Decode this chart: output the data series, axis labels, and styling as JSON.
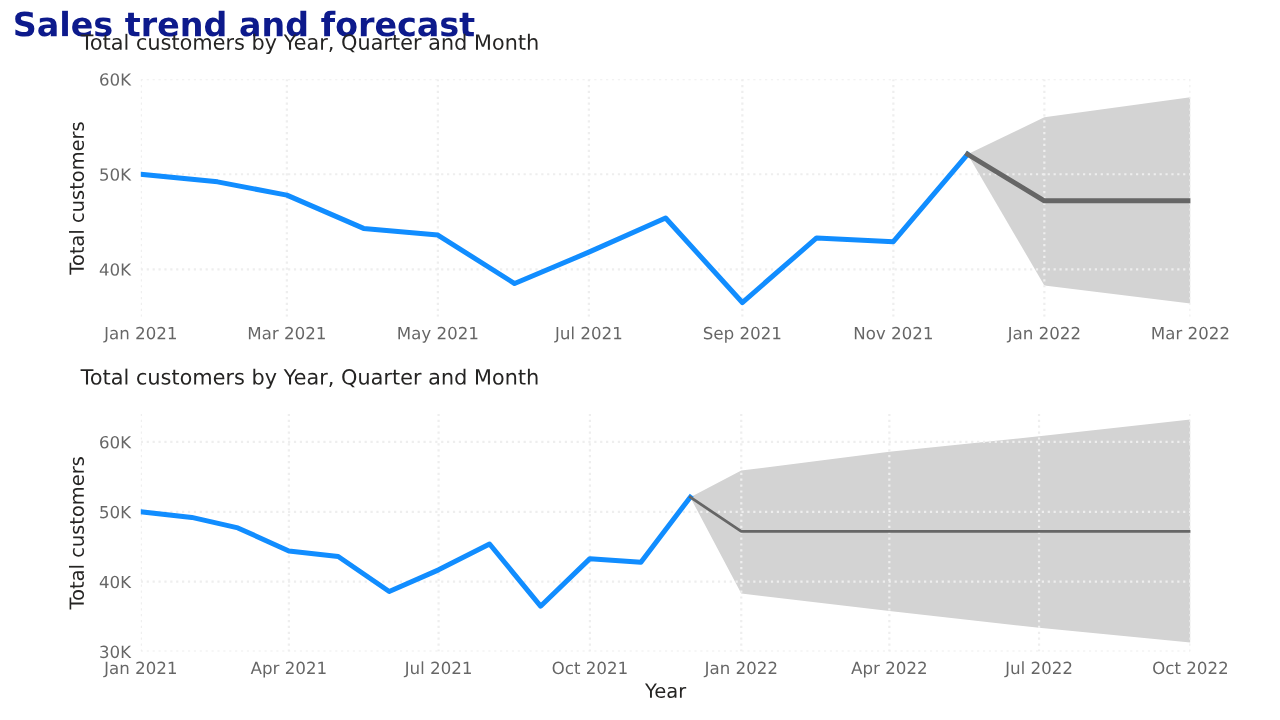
{
  "chart_data": [
    {
      "type": "line",
      "title": "Sales trend and forecast",
      "subtitle": "Total customers by Year, Quarter and Month",
      "ylabel": "Total customers",
      "grid": true,
      "legend": false,
      "marker": "none",
      "line_style": "solid",
      "xlim": [
        "2021-01",
        "2022-03"
      ],
      "ylim": [
        35000,
        60000
      ],
      "xticks": [
        {
          "value": "2021-01",
          "label": "Jan 2021"
        },
        {
          "value": "2021-03",
          "label": "Mar 2021"
        },
        {
          "value": "2021-05",
          "label": "May 2021"
        },
        {
          "value": "2021-07",
          "label": "Jul 2021"
        },
        {
          "value": "2021-09",
          "label": "Sep 2021"
        },
        {
          "value": "2021-11",
          "label": "Nov 2021"
        },
        {
          "value": "2022-01",
          "label": "Jan 2022"
        },
        {
          "value": "2022-03",
          "label": "Mar 2022"
        }
      ],
      "yticks": [
        {
          "value": 40000,
          "label": "40K"
        },
        {
          "value": 50000,
          "label": "50K"
        },
        {
          "value": 60000,
          "label": "60K"
        }
      ],
      "series": [
        {
          "color": "#118dff",
          "x": [
            "2021-01",
            "2021-02",
            "2021-03",
            "2021-04",
            "2021-05",
            "2021-06",
            "2021-07",
            "2021-08",
            "2021-09",
            "2021-10",
            "2021-11",
            "2021-12"
          ],
          "values": [
            50000,
            49200,
            47800,
            44300,
            43600,
            38500,
            41800,
            45400,
            36500,
            43300,
            42900,
            52100
          ]
        },
        {
          "color": "#666666",
          "x": [
            "2021-12",
            "2022-01",
            "2022-03"
          ],
          "values": [
            52100,
            47200,
            47200
          ],
          "lower": [
            52100,
            38300,
            36400
          ],
          "upper": [
            52100,
            56000,
            58100
          ]
        }
      ]
    },
    {
      "type": "line",
      "title": "Total customers by Year, Quarter and Month",
      "xlabel": "Year",
      "ylabel": "Total customers",
      "grid": true,
      "legend": false,
      "marker": "none",
      "line_style": "solid",
      "xlim": [
        "2021-01",
        "2022-10"
      ],
      "ylim": [
        30000,
        64000
      ],
      "xticks": [
        {
          "value": "2021-01",
          "label": "Jan 2021"
        },
        {
          "value": "2021-04",
          "label": "Apr 2021"
        },
        {
          "value": "2021-07",
          "label": "Jul 2021"
        },
        {
          "value": "2021-10",
          "label": "Oct 2021"
        },
        {
          "value": "2022-01",
          "label": "Jan 2022"
        },
        {
          "value": "2022-04",
          "label": "Apr 2022"
        },
        {
          "value": "2022-07",
          "label": "Jul 2022"
        },
        {
          "value": "2022-10",
          "label": "Oct 2022"
        }
      ],
      "yticks": [
        {
          "value": 30000,
          "label": "30K"
        },
        {
          "value": 40000,
          "label": "40K"
        },
        {
          "value": 50000,
          "label": "50K"
        },
        {
          "value": 60000,
          "label": "60K"
        }
      ],
      "series": [
        {
          "color": "#118dff",
          "x": [
            "2021-01",
            "2021-02",
            "2021-03",
            "2021-04",
            "2021-05",
            "2021-06",
            "2021-07",
            "2021-08",
            "2021-09",
            "2021-10",
            "2021-11",
            "2021-12"
          ],
          "values": [
            50000,
            49200,
            47700,
            44400,
            43600,
            38600,
            41700,
            45400,
            36500,
            43300,
            42800,
            52100
          ]
        },
        {
          "color": "#666666",
          "x": [
            "2021-12",
            "2022-01",
            "2022-04",
            "2022-07",
            "2022-10"
          ],
          "values": [
            52100,
            47200,
            47200,
            47200,
            47200
          ],
          "lower": [
            52100,
            38300,
            35800,
            33400,
            31300
          ],
          "upper": [
            52100,
            55900,
            58600,
            60800,
            63200
          ]
        }
      ]
    }
  ]
}
